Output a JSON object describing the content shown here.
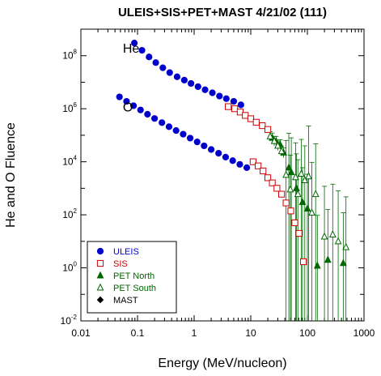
{
  "chart_data": {
    "type": "scatter",
    "title": "ULEIS+SIS+PET+MAST 4/21/02 (111)",
    "xlabel": "Energy (MeV/nucleon)",
    "ylabel": "He and O Fluence",
    "x_scale": "log",
    "y_scale": "log",
    "xlim": [
      0.01,
      1000
    ],
    "ylim": [
      0.01,
      1000000000
    ],
    "x_ticks": [
      {
        "value": 0.01,
        "label": "0.01"
      },
      {
        "value": 0.1,
        "label": "0.1"
      },
      {
        "value": 1,
        "label": "1"
      },
      {
        "value": 10,
        "label": "10"
      },
      {
        "value": 100,
        "label": "100"
      },
      {
        "value": 1000,
        "label": "1000"
      }
    ],
    "y_ticks": [
      {
        "value": 0.01,
        "base": "10",
        "exp": "-2"
      },
      {
        "value": 1,
        "base": "10",
        "exp": "0"
      },
      {
        "value": 100,
        "base": "10",
        "exp": "2"
      },
      {
        "value": 10000,
        "base": "10",
        "exp": "4"
      },
      {
        "value": 1000000,
        "base": "10",
        "exp": "6"
      },
      {
        "value": 100000000,
        "base": "10",
        "exp": "8"
      }
    ],
    "grid": false,
    "legend_position": "bottom-left",
    "annotations": [
      {
        "text": "He",
        "x": 0.055,
        "y": 200000000
      },
      {
        "text": "O",
        "x": 0.055,
        "y": 1200000
      }
    ],
    "series": [
      {
        "name": "ULEIS",
        "color": "#0000cc",
        "marker": "circle-filled",
        "points": [
          [
            0.088,
            300000000
          ],
          [
            0.12,
            160000000
          ],
          [
            0.16,
            90000000
          ],
          [
            0.21,
            55000000
          ],
          [
            0.28,
            35000000
          ],
          [
            0.37,
            23000000
          ],
          [
            0.5,
            16000000
          ],
          [
            0.67,
            12000000
          ],
          [
            0.88,
            9000000
          ],
          [
            1.17,
            6800000
          ],
          [
            1.56,
            5200000
          ],
          [
            2.1,
            4000000
          ],
          [
            2.8,
            3000000
          ],
          [
            3.7,
            2400000
          ],
          [
            5,
            1900000
          ],
          [
            6.7,
            1400000
          ],
          [
            0.048,
            2800000
          ],
          [
            0.064,
            1900000
          ],
          [
            0.085,
            1300000
          ],
          [
            0.113,
            900000
          ],
          [
            0.15,
            620000
          ],
          [
            0.2,
            430000
          ],
          [
            0.27,
            300000
          ],
          [
            0.36,
            210000
          ],
          [
            0.48,
            150000
          ],
          [
            0.64,
            110000
          ],
          [
            0.85,
            78000
          ],
          [
            1.13,
            56000
          ],
          [
            1.5,
            40000
          ],
          [
            2,
            29000
          ],
          [
            2.7,
            21000
          ],
          [
            3.6,
            15000
          ],
          [
            4.8,
            11000
          ],
          [
            6.4,
            8000
          ],
          [
            8.5,
            6000
          ],
          [
            11,
            10000
          ]
        ]
      },
      {
        "name": "SIS",
        "color": "#cc0000",
        "marker": "square-open",
        "points": [
          [
            4,
            1200000
          ],
          [
            5.2,
            1000000
          ],
          [
            6.5,
            750000
          ],
          [
            8,
            560000
          ],
          [
            10,
            420000
          ],
          [
            12.5,
            310000
          ],
          [
            16,
            230000
          ],
          [
            20,
            165000
          ],
          [
            11,
            10000
          ],
          [
            13.5,
            7000
          ],
          [
            16.5,
            4500
          ],
          [
            20,
            2500
          ],
          [
            24,
            1600
          ],
          [
            29,
            1000
          ],
          [
            35,
            600
          ],
          [
            42,
            280
          ],
          [
            51,
            140
          ],
          [
            60,
            50
          ],
          [
            71,
            20
          ],
          [
            85,
            1.7
          ]
        ]
      },
      {
        "name": "PET North",
        "color": "#006600",
        "marker": "triangle-filled",
        "points": [
          [
            24,
            80000
          ],
          [
            28,
            60000
          ],
          [
            33,
            45000
          ],
          [
            38,
            22000
          ],
          [
            47,
            6000
          ],
          [
            52,
            4000
          ],
          [
            64,
            1000
          ],
          [
            82,
            300
          ],
          [
            100,
            170
          ],
          [
            150,
            1.2
          ],
          [
            230,
            2
          ],
          [
            430,
            1.5
          ]
        ]
      },
      {
        "name": "PET South",
        "color": "#006600",
        "marker": "triangle-open",
        "points": [
          [
            22,
            90000
          ],
          [
            26,
            60000
          ],
          [
            30,
            40000
          ],
          [
            35,
            25000
          ],
          [
            42,
            3200
          ],
          [
            50,
            900
          ],
          [
            62,
            2600
          ],
          [
            68,
            600
          ],
          [
            78,
            3500
          ],
          [
            90,
            2000
          ],
          [
            105,
            2800
          ],
          [
            120,
            120
          ],
          [
            140,
            600
          ],
          [
            200,
            15
          ],
          [
            280,
            18
          ],
          [
            350,
            10
          ],
          [
            480,
            6
          ]
        ]
      },
      {
        "name": "MAST",
        "color": "#000000",
        "marker": "diamond-filled",
        "points": []
      }
    ]
  }
}
